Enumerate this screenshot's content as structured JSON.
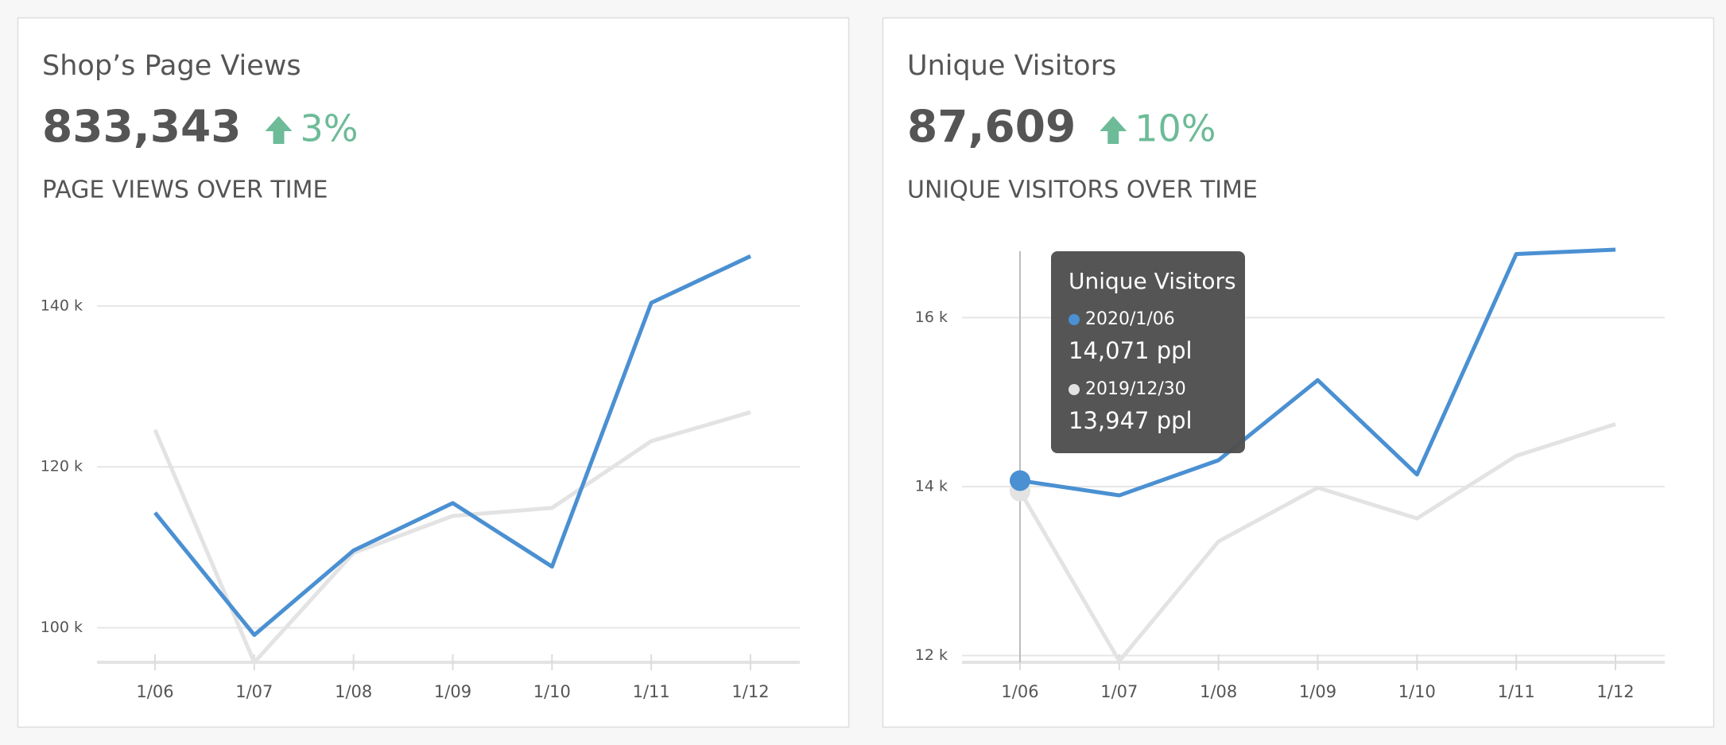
{
  "chart_data": [
    {
      "type": "line",
      "title": "Shop’s Page Views",
      "metric": "833,343",
      "change": "3%",
      "subtitle": "PAGE VIEWS OVER TIME",
      "categories": [
        "1/06",
        "1/07",
        "1/08",
        "1/09",
        "1/10",
        "1/11",
        "1/12"
      ],
      "series": [
        {
          "color": "#e3e3e3",
          "values": [
            124600,
            95700,
            109300,
            113900,
            114900,
            123200,
            126800
          ]
        },
        {
          "color": "#4a90d2",
          "values": [
            114300,
            99100,
            109600,
            115500,
            107600,
            140400,
            146200
          ]
        }
      ],
      "ylim": [
        95700,
        147800
      ],
      "yticks": [
        {
          "value": 100000,
          "label": "100 k"
        },
        {
          "value": 120000,
          "label": "120 k"
        },
        {
          "value": 140000,
          "label": "140 k"
        }
      ],
      "grid": true
    },
    {
      "type": "line",
      "title": "Unique Visitors",
      "metric": "87,609",
      "change": "10%",
      "subtitle": "UNIQUE VISITORS OVER TIME",
      "categories": [
        "1/06",
        "1/07",
        "1/08",
        "1/09",
        "1/10",
        "1/11",
        "1/12"
      ],
      "series": [
        {
          "color": "#e3e3e3",
          "values": [
            13947,
            11935,
            13351,
            13987,
            13623,
            14364,
            14740
          ]
        },
        {
          "color": "#4a90d2",
          "values": [
            14071,
            13896,
            14312,
            15260,
            14143,
            16753,
            16805
          ]
        }
      ],
      "ylim": [
        11920,
        16880
      ],
      "yticks": [
        {
          "value": 12000,
          "label": "12 k"
        },
        {
          "value": 14000,
          "label": "14 k"
        },
        {
          "value": 16000,
          "label": "16 k"
        }
      ],
      "grid": true,
      "tooltip": {
        "title": "Unique Visitors",
        "entries": [
          {
            "name": "2020/1/06",
            "text": "14,071 ppl",
            "color": "#4a90d2"
          },
          {
            "name": "2019/12/30",
            "text": "13,947 ppl",
            "color": "#e3e3e3"
          }
        ]
      }
    }
  ]
}
